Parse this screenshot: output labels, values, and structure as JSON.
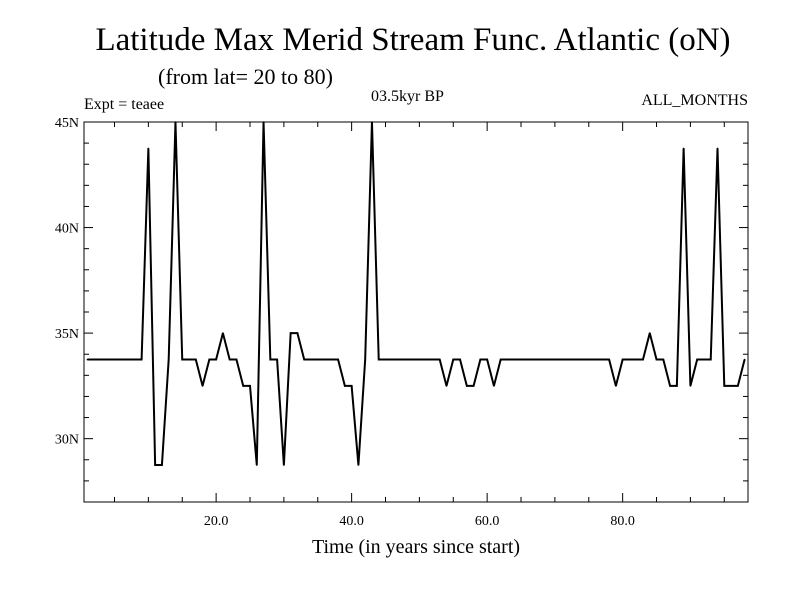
{
  "title": "Latitude Max Merid Stream Func. Atlantic (oN)",
  "subtitle": "(from lat= 20 to 80)",
  "expt": "Expt = teaee",
  "period": "03.5kyr BP",
  "months": "ALL_MONTHS",
  "chart_data": {
    "type": "line",
    "title": "Latitude Max Merid Stream Func. Atlantic (oN)",
    "xlabel": "Time (in years since start)",
    "ylabel": "",
    "xlim": [
      0.5,
      98.5
    ],
    "ylim": [
      27,
      45
    ],
    "x_ticks": [
      20,
      40,
      60,
      80
    ],
    "x_tick_labels": [
      "20.0",
      "40.0",
      "60.0",
      "80.0"
    ],
    "y_ticks": [
      30,
      35,
      40,
      45
    ],
    "y_tick_labels": [
      "30N",
      "35N",
      "40N",
      "45N"
    ],
    "grid": false,
    "series": [
      {
        "color": "#000000",
        "x": [
          1,
          2,
          3,
          4,
          5,
          6,
          7,
          8,
          9,
          10,
          11,
          12,
          13,
          14,
          15,
          16,
          17,
          18,
          19,
          20,
          21,
          22,
          23,
          24,
          25,
          26,
          27,
          28,
          29,
          30,
          31,
          32,
          33,
          34,
          35,
          36,
          37,
          38,
          39,
          40,
          41,
          42,
          43,
          44,
          45,
          46,
          47,
          48,
          49,
          50,
          51,
          52,
          53,
          54,
          55,
          56,
          57,
          58,
          59,
          60,
          61,
          62,
          63,
          64,
          65,
          66,
          67,
          68,
          69,
          70,
          71,
          72,
          73,
          74,
          75,
          76,
          77,
          78,
          79,
          80,
          81,
          82,
          83,
          84,
          85,
          86,
          87,
          88,
          89,
          90,
          91,
          92,
          93,
          94,
          95,
          96,
          97,
          98
        ],
        "values": [
          33.75,
          33.75,
          33.75,
          33.75,
          33.75,
          33.75,
          33.75,
          33.75,
          33.75,
          43.75,
          28.75,
          28.75,
          33.75,
          45.0,
          33.75,
          33.75,
          33.75,
          32.5,
          33.75,
          33.75,
          35.0,
          33.75,
          33.75,
          32.5,
          32.5,
          28.75,
          45.0,
          33.75,
          33.75,
          28.75,
          35.0,
          35.0,
          33.75,
          33.75,
          33.75,
          33.75,
          33.75,
          33.75,
          32.5,
          32.5,
          28.75,
          33.75,
          45.0,
          33.75,
          33.75,
          33.75,
          33.75,
          33.75,
          33.75,
          33.75,
          33.75,
          33.75,
          33.75,
          32.5,
          33.75,
          33.75,
          32.5,
          32.5,
          33.75,
          33.75,
          32.5,
          33.75,
          33.75,
          33.75,
          33.75,
          33.75,
          33.75,
          33.75,
          33.75,
          33.75,
          33.75,
          33.75,
          33.75,
          33.75,
          33.75,
          33.75,
          33.75,
          33.75,
          32.5,
          33.75,
          33.75,
          33.75,
          33.75,
          35.0,
          33.75,
          33.75,
          32.5,
          32.5,
          43.75,
          32.5,
          33.75,
          33.75,
          33.75,
          43.75,
          32.5,
          32.5,
          32.5,
          33.75
        ]
      }
    ]
  }
}
